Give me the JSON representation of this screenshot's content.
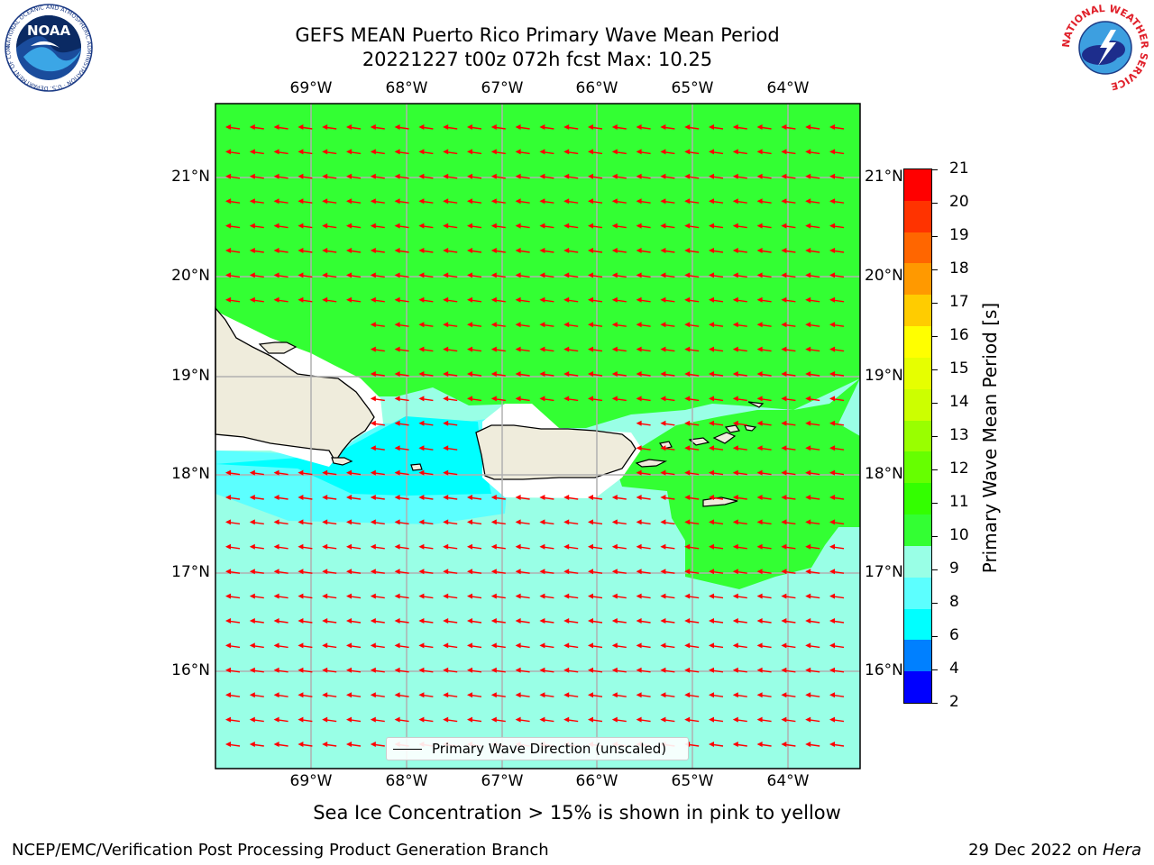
{
  "title": {
    "line1": "GEFS MEAN Puerto Rico Primary Wave Mean Period",
    "line2": "20221227 t00z 072h fcst   Max: 10.25"
  },
  "map": {
    "lon_labels": [
      "69°W",
      "68°W",
      "67°W",
      "66°W",
      "65°W",
      "64°W"
    ],
    "lat_labels": [
      "21°N",
      "20°N",
      "19°N",
      "18°N",
      "17°N",
      "16°N"
    ],
    "lon_range": [
      -70.0,
      -63.25
    ],
    "lat_range": [
      15.0,
      21.75
    ],
    "field_colors": {
      "land": "#efecdc",
      "band_6_8": "#00ffff",
      "band_8_9": "#5cffff",
      "band_9_10": "#99ffe6",
      "band_10_11": "#33ff33",
      "arrow": "#ff0000"
    },
    "arrow_direction": "toward-west"
  },
  "legend": {
    "label": "Primary Wave Direction (unscaled)"
  },
  "colorbar": {
    "title": "Primary Wave Mean Period [s]",
    "ticks": [
      "21",
      "20",
      "19",
      "18",
      "17",
      "16",
      "15",
      "14",
      "13",
      "12",
      "11",
      "10",
      "9",
      "8",
      "6",
      "4",
      "2"
    ],
    "colors": [
      "#ff0000",
      "#ff3300",
      "#ff6600",
      "#ff9900",
      "#ffcc00",
      "#ffff00",
      "#e6ff00",
      "#ccff00",
      "#99ff00",
      "#66ff00",
      "#33ff00",
      "#33ff33",
      "#99ffe6",
      "#5cffff",
      "#00ffff",
      "#0080ff",
      "#0000ff"
    ]
  },
  "note": "Sea Ice Concentration > 15% is shown in pink to yellow",
  "footer": {
    "left": "NCEP/EMC/Verification Post Processing Product Generation Branch",
    "right_prefix": "29 Dec 2022 on ",
    "right_host": "Hera"
  },
  "logos": {
    "noaa": "NOAA",
    "noaa_ring": "NATIONAL OCEANIC AND ATMOSPHERIC ADMINISTRATION · U.S. DEPARTMENT OF COMMERCE",
    "nws_ring": "NATIONAL WEATHER SERVICE"
  }
}
